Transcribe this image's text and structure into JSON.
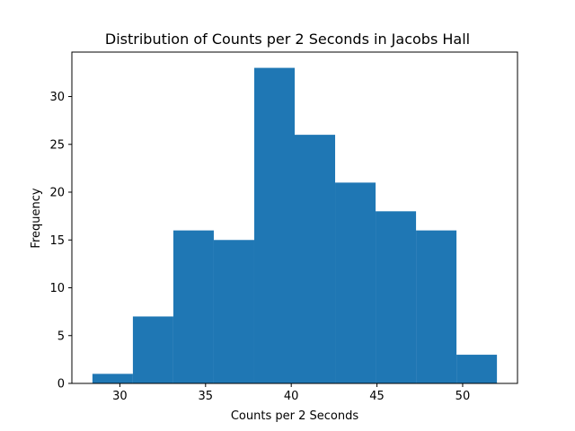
{
  "chart_data": {
    "type": "bar",
    "title": "Distribution of Counts per 2 Seconds in Jacobs Hall",
    "xlabel": "Counts per 2 Seconds",
    "ylabel": "Frequency",
    "bin_edges": [
      28.4,
      30.76,
      33.12,
      35.48,
      37.84,
      40.2,
      42.56,
      44.92,
      47.28,
      49.64,
      52.0
    ],
    "values": [
      1,
      7,
      16,
      15,
      33,
      26,
      21,
      18,
      16,
      3
    ],
    "xlim": [
      27.2,
      53.2
    ],
    "ylim": [
      0,
      34.65
    ],
    "xticks": [
      30,
      35,
      40,
      45,
      50
    ],
    "xtick_labels": [
      "30",
      "35",
      "40",
      "45",
      "50"
    ],
    "yticks": [
      0,
      5,
      10,
      15,
      20,
      25,
      30
    ],
    "ytick_labels": [
      "0",
      "5",
      "10",
      "15",
      "20",
      "25",
      "30"
    ],
    "grid": false,
    "bar_color": "#1f77b4"
  }
}
